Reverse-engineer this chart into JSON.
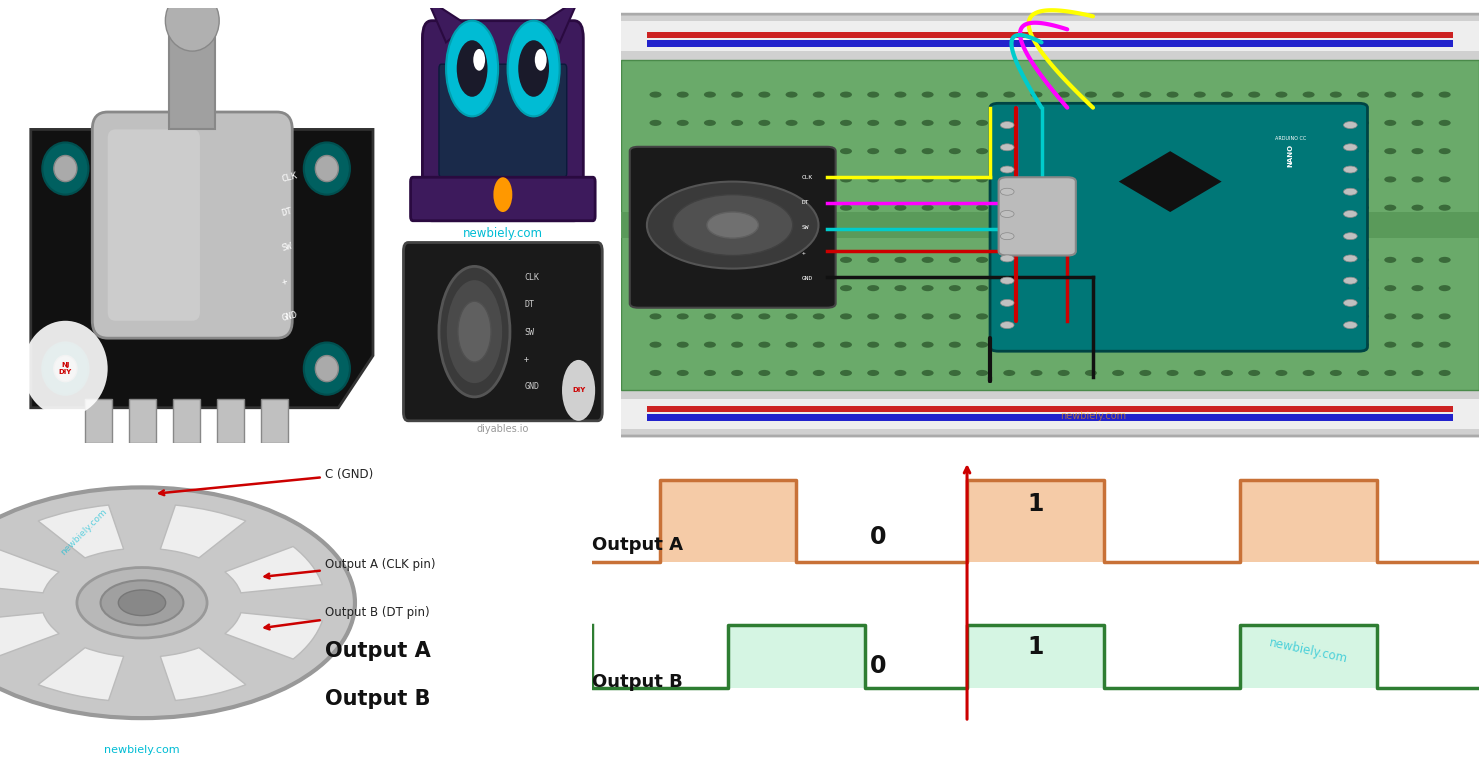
{
  "bg_color": "#ffffff",
  "output_a_label": "Output A",
  "output_b_label": "Output B",
  "output_a_fill": "#f5cba7",
  "output_a_edge": "#c87137",
  "output_b_fill": "#d5f5e3",
  "output_b_edge": "#2e7d32",
  "newbiely_color": "#00bcd4",
  "arrow_color": "#cc0000",
  "red_line_x": 5.5,
  "signal_a_x": [
    0.0,
    1.0,
    1.0,
    3.0,
    3.0,
    5.5,
    5.5,
    7.5,
    7.5,
    9.5,
    9.5,
    11.5,
    11.5,
    13.0
  ],
  "signal_a_y": [
    0,
    0,
    1,
    1,
    0,
    0,
    1,
    1,
    0,
    0,
    1,
    1,
    0,
    0
  ],
  "signal_b_x": [
    0.0,
    0.0,
    2.0,
    2.0,
    4.0,
    4.0,
    5.5,
    5.5,
    7.5,
    7.5,
    9.5,
    9.5,
    11.5,
    11.5,
    13.0
  ],
  "signal_b_y": [
    1,
    0,
    0,
    1,
    1,
    0,
    0,
    1,
    1,
    0,
    0,
    1,
    1,
    0,
    0
  ],
  "label_clk": "Output A (CLK pin)",
  "label_dt": "Output B (DT pin)",
  "label_gnd": "C (GND)"
}
